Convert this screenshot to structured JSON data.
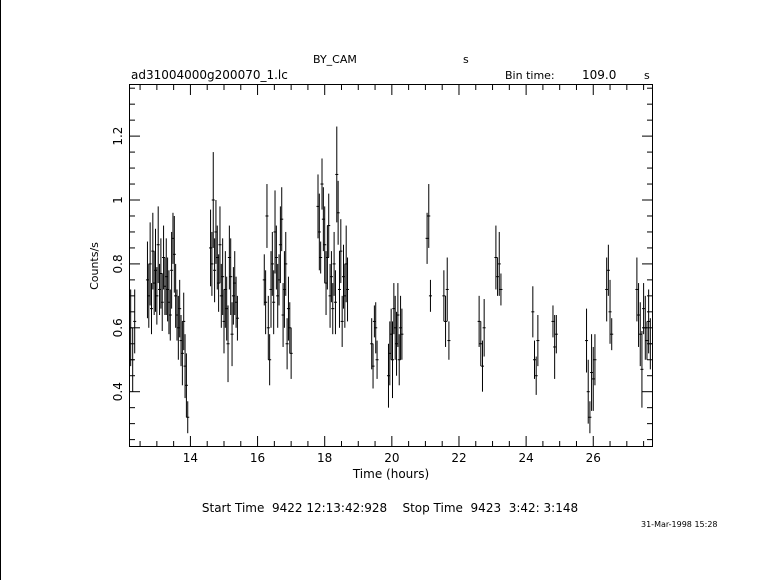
{
  "header": {
    "instrument": "BY_CAM",
    "unit_top": "s",
    "filename": "ad31004000g200070_1.lc",
    "bin_time_label": "Bin time:",
    "bin_time_value": "109.0",
    "bin_time_unit": "s"
  },
  "footer": {
    "times_text": "Start Time  9422 12:13:42:928    Stop Time  9423  3:42: 3:148",
    "date_stamp": "31-Mar-1998 15:28"
  },
  "chart_data": {
    "type": "scatter",
    "style": "vertical error bars (light curve)",
    "title": "",
    "xlabel": "Time (hours)",
    "ylabel": "Counts/s",
    "xlim": [
      12.2,
      27.75
    ],
    "ylim": [
      0.23,
      1.36
    ],
    "x_ticks": [
      14,
      16,
      18,
      20,
      22,
      24,
      26
    ],
    "x_tick_labels": [
      "14",
      "16",
      "18",
      "20",
      "22",
      "24",
      "26"
    ],
    "y_ticks": [
      0.4,
      0.6,
      0.8,
      1.0,
      1.2
    ],
    "y_tick_labels": [
      "0.4",
      "0.6",
      "0.8",
      "1",
      "1.2"
    ],
    "grid": false,
    "legend": "none",
    "series": [
      {
        "color": "#000000",
        "points": [
          [
            12.22,
            0.6,
            0.12
          ],
          [
            12.28,
            0.5,
            0.1
          ],
          [
            12.34,
            0.62,
            0.1
          ],
          [
            12.72,
            0.75,
            0.12
          ],
          [
            12.76,
            0.7,
            0.1
          ],
          [
            12.8,
            0.8,
            0.13
          ],
          [
            12.84,
            0.66,
            0.08
          ],
          [
            12.88,
            0.84,
            0.12
          ],
          [
            12.92,
            0.74,
            0.1
          ],
          [
            12.96,
            0.78,
            0.13
          ],
          [
            13.0,
            0.7,
            0.09
          ],
          [
            13.04,
            0.86,
            0.12
          ],
          [
            13.08,
            0.72,
            0.08
          ],
          [
            13.12,
            0.77,
            0.11
          ],
          [
            13.16,
            0.68,
            0.09
          ],
          [
            13.2,
            0.82,
            0.1
          ],
          [
            13.24,
            0.73,
            0.09
          ],
          [
            13.28,
            0.76,
            0.12
          ],
          [
            13.32,
            0.72,
            0.1
          ],
          [
            13.36,
            0.68,
            0.1
          ],
          [
            13.4,
            0.64,
            0.08
          ],
          [
            13.44,
            0.78,
            0.12
          ],
          [
            13.48,
            0.88,
            0.08
          ],
          [
            13.52,
            0.83,
            0.12
          ],
          [
            13.56,
            0.7,
            0.1
          ],
          [
            13.6,
            0.64,
            0.08
          ],
          [
            13.64,
            0.6,
            0.1
          ],
          [
            13.68,
            0.66,
            0.09
          ],
          [
            13.72,
            0.56,
            0.08
          ],
          [
            13.76,
            0.52,
            0.1
          ],
          [
            13.8,
            0.62,
            0.09
          ],
          [
            13.84,
            0.48,
            0.1
          ],
          [
            13.88,
            0.42,
            0.1
          ],
          [
            13.92,
            0.32,
            0.05
          ],
          [
            14.6,
            0.85,
            0.12
          ],
          [
            14.64,
            0.8,
            0.1
          ],
          [
            14.68,
            1.0,
            0.15
          ],
          [
            14.72,
            0.78,
            0.1
          ],
          [
            14.76,
            0.9,
            0.1
          ],
          [
            14.8,
            0.82,
            0.1
          ],
          [
            14.84,
            0.74,
            0.09
          ],
          [
            14.88,
            0.86,
            0.12
          ],
          [
            14.92,
            0.7,
            0.1
          ],
          [
            14.96,
            0.76,
            0.12
          ],
          [
            15.0,
            0.62,
            0.1
          ],
          [
            15.04,
            0.72,
            0.12
          ],
          [
            15.08,
            0.66,
            0.1
          ],
          [
            15.12,
            0.55,
            0.12
          ],
          [
            15.16,
            0.82,
            0.1
          ],
          [
            15.2,
            0.76,
            0.12
          ],
          [
            15.24,
            0.58,
            0.1
          ],
          [
            15.28,
            0.7,
            0.09
          ],
          [
            15.32,
            0.74,
            0.1
          ],
          [
            15.36,
            0.68,
            0.08
          ],
          [
            15.4,
            0.63,
            0.07
          ],
          [
            16.2,
            0.75,
            0.08
          ],
          [
            16.24,
            0.68,
            0.1
          ],
          [
            16.28,
            0.95,
            0.1
          ],
          [
            16.32,
            0.6,
            0.1
          ],
          [
            16.36,
            0.5,
            0.08
          ],
          [
            16.4,
            0.72,
            0.12
          ],
          [
            16.44,
            0.8,
            0.1
          ],
          [
            16.48,
            0.68,
            0.1
          ],
          [
            16.52,
            0.9,
            0.13
          ],
          [
            16.56,
            0.82,
            0.1
          ],
          [
            16.6,
            0.7,
            0.1
          ],
          [
            16.64,
            0.75,
            0.08
          ],
          [
            16.68,
            0.86,
            0.12
          ],
          [
            16.72,
            0.94,
            0.1
          ],
          [
            16.76,
            0.64,
            0.1
          ],
          [
            16.8,
            0.72,
            0.12
          ],
          [
            16.84,
            0.8,
            0.1
          ],
          [
            16.88,
            0.55,
            0.08
          ],
          [
            16.92,
            0.66,
            0.1
          ],
          [
            16.96,
            0.6,
            0.08
          ],
          [
            17.0,
            0.52,
            0.08
          ],
          [
            17.8,
            0.98,
            0.1
          ],
          [
            17.84,
            0.9,
            0.12
          ],
          [
            17.88,
            0.82,
            0.05
          ],
          [
            17.92,
            1.05,
            0.08
          ],
          [
            17.96,
            0.94,
            0.1
          ],
          [
            18.0,
            0.86,
            0.12
          ],
          [
            18.04,
            0.74,
            0.1
          ],
          [
            18.08,
            0.82,
            0.1
          ],
          [
            18.12,
            0.92,
            0.1
          ],
          [
            18.16,
            0.7,
            0.1
          ],
          [
            18.2,
            0.76,
            0.08
          ],
          [
            18.24,
            0.66,
            0.08
          ],
          [
            18.28,
            0.8,
            0.1
          ],
          [
            18.32,
            0.68,
            0.1
          ],
          [
            18.36,
            1.08,
            0.15
          ],
          [
            18.4,
            0.96,
            0.1
          ],
          [
            18.44,
            0.72,
            0.12
          ],
          [
            18.48,
            0.84,
            0.1
          ],
          [
            18.52,
            0.62,
            0.08
          ],
          [
            18.56,
            0.76,
            0.1
          ],
          [
            18.6,
            0.7,
            0.1
          ],
          [
            18.64,
            0.8,
            0.12
          ],
          [
            18.68,
            0.72,
            0.1
          ],
          [
            19.4,
            0.55,
            0.08
          ],
          [
            19.44,
            0.48,
            0.07
          ],
          [
            19.48,
            0.62,
            0.05
          ],
          [
            19.52,
            0.6,
            0.08
          ],
          [
            19.56,
            0.5,
            0.06
          ],
          [
            19.9,
            0.45,
            0.1
          ],
          [
            19.94,
            0.52,
            0.1
          ],
          [
            19.98,
            0.58,
            0.08
          ],
          [
            20.02,
            0.5,
            0.12
          ],
          [
            20.06,
            0.66,
            0.08
          ],
          [
            20.1,
            0.6,
            0.1
          ],
          [
            20.14,
            0.55,
            0.1
          ],
          [
            20.18,
            0.64,
            0.1
          ],
          [
            20.22,
            0.5,
            0.08
          ],
          [
            20.26,
            0.6,
            0.1
          ],
          [
            20.3,
            0.58,
            0.08
          ],
          [
            21.05,
            0.88,
            0.08
          ],
          [
            21.1,
            0.95,
            0.1
          ],
          [
            21.15,
            0.7,
            0.05
          ],
          [
            21.55,
            0.7,
            0.08
          ],
          [
            21.6,
            0.62,
            0.08
          ],
          [
            21.65,
            0.72,
            0.1
          ],
          [
            21.7,
            0.56,
            0.06
          ],
          [
            22.6,
            0.62,
            0.08
          ],
          [
            22.65,
            0.55,
            0.07
          ],
          [
            22.7,
            0.48,
            0.08
          ],
          [
            22.75,
            0.6,
            0.09
          ],
          [
            23.1,
            0.82,
            0.1
          ],
          [
            23.15,
            0.76,
            0.06
          ],
          [
            23.2,
            0.8,
            0.1
          ],
          [
            23.25,
            0.72,
            0.05
          ],
          [
            24.2,
            0.65,
            0.08
          ],
          [
            24.25,
            0.5,
            0.06
          ],
          [
            24.3,
            0.45,
            0.06
          ],
          [
            24.35,
            0.56,
            0.08
          ],
          [
            24.8,
            0.62,
            0.05
          ],
          [
            24.85,
            0.54,
            0.1
          ],
          [
            24.9,
            0.58,
            0.06
          ],
          [
            25.8,
            0.56,
            0.1
          ],
          [
            25.85,
            0.4,
            0.1
          ],
          [
            25.9,
            0.32,
            0.05
          ],
          [
            25.95,
            0.46,
            0.12
          ],
          [
            26.0,
            0.44,
            0.1
          ],
          [
            26.05,
            0.5,
            0.08
          ],
          [
            26.4,
            0.72,
            0.1
          ],
          [
            26.45,
            0.78,
            0.08
          ],
          [
            26.5,
            0.65,
            0.1
          ],
          [
            26.55,
            0.58,
            0.05
          ],
          [
            27.3,
            0.72,
            0.1
          ],
          [
            27.35,
            0.64,
            0.1
          ],
          [
            27.4,
            0.58,
            0.1
          ],
          [
            27.45,
            0.47,
            0.12
          ],
          [
            27.5,
            0.66,
            0.08
          ],
          [
            27.55,
            0.6,
            0.1
          ],
          [
            27.6,
            0.56,
            0.06
          ],
          [
            27.65,
            0.62,
            0.1
          ],
          [
            27.7,
            0.55,
            0.08
          ]
        ]
      }
    ]
  }
}
